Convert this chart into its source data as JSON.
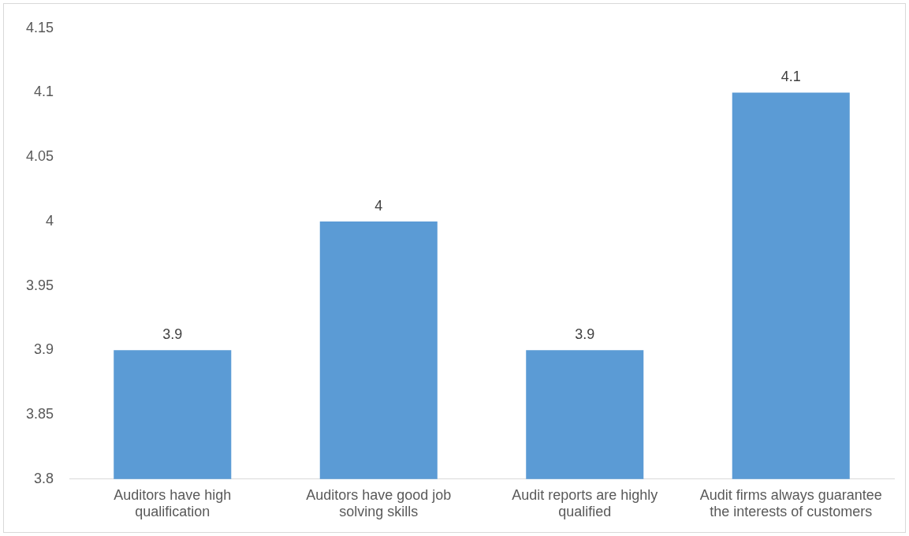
{
  "chart_data": {
    "type": "bar",
    "categories": [
      "Auditors have high qualification",
      "Auditors have good job solving skills",
      "Audit reports are highly qualified",
      "Audit firms always guarantee the interests of customers"
    ],
    "values": [
      3.9,
      4,
      3.9,
      4.1
    ],
    "color": "#5b9bd5",
    "ylim": [
      3.8,
      4.15
    ],
    "yticks": [
      3.8,
      3.85,
      3.9,
      3.95,
      4,
      4.05,
      4.1,
      4.15
    ],
    "grid": false,
    "legend": false,
    "data_labels": true
  }
}
